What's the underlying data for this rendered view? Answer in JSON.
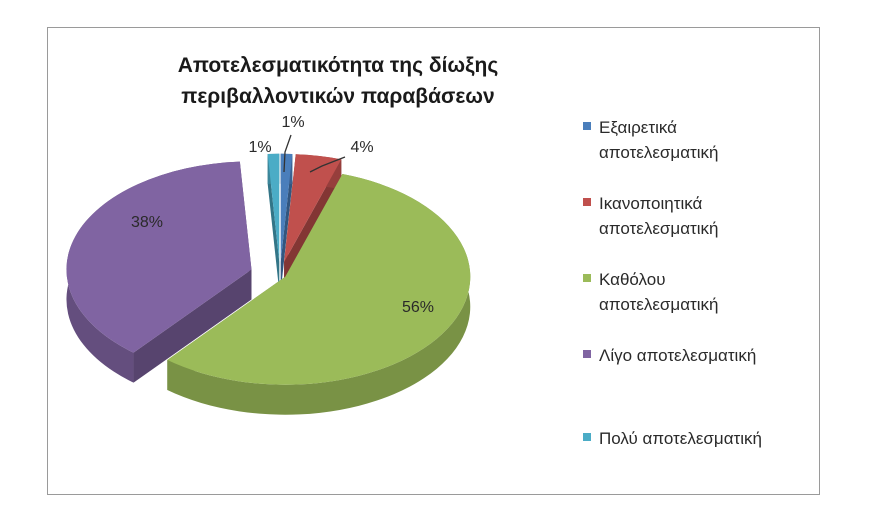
{
  "chart_data": {
    "type": "pie",
    "title": "Αποτελεσματικότητα της δίωξης περιβαλλοντικών παραβάσεων",
    "categories": [
      "Εξαιρετικά αποτελεσματική",
      "Ικανοποιητικά αποτελεσματική",
      "Καθόλου αποτελεσματική",
      "Λίγο αποτελεσματική",
      "Πολύ αποτελεσματική"
    ],
    "values": [
      1,
      4,
      56,
      38,
      1
    ],
    "data_labels": [
      "1%",
      "4%",
      "56%",
      "38%",
      "1%"
    ],
    "colors": [
      "#4a7ebb",
      "#c0504d",
      "#9bbb59",
      "#8064a2",
      "#4bacc6"
    ],
    "legend_position": "right",
    "style": "3d-exploded"
  },
  "legend": [
    {
      "line1": "Εξαιρετικά",
      "line2": "αποτελεσματική"
    },
    {
      "line1": "Ικανοποιητικά",
      "line2": "αποτελεσματική"
    },
    {
      "line1": "Καθόλου",
      "line2": "αποτελεσματική"
    },
    {
      "line1": "Λίγο αποτελεσματική",
      "line2": ""
    },
    {
      "line1": "Πολύ αποτελεσματική",
      "line2": ""
    }
  ]
}
